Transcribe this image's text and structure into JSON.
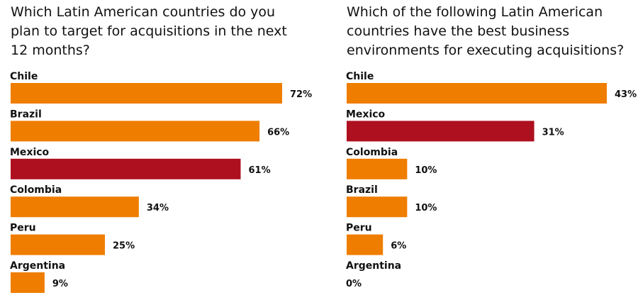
{
  "colors": {
    "default": "#ef7d00",
    "highlight": "#ae1020",
    "text": "#111111"
  },
  "chart_data": [
    {
      "type": "bar",
      "orientation": "horizontal",
      "title": "Which Latin American countries do you plan to target for acquisitions in the next 12 months?",
      "categories": [
        "Chile",
        "Brazil",
        "Mexico",
        "Colombia",
        "Peru",
        "Argentina"
      ],
      "values": [
        72,
        66,
        61,
        34,
        25,
        9
      ],
      "labels": [
        "72%",
        "66%",
        "61%",
        "34%",
        "25%",
        "9%"
      ],
      "highlight": "Mexico",
      "unit": "%",
      "xlim": [
        0,
        72
      ],
      "grid": false
    },
    {
      "type": "bar",
      "orientation": "horizontal",
      "title": "Which of the following Latin American countries have the best business environments for executing acquisitions?",
      "categories": [
        "Chile",
        "Mexico",
        "Colombia",
        "Brazil",
        "Peru",
        "Argentina"
      ],
      "values": [
        43,
        31,
        10,
        10,
        6,
        0
      ],
      "labels": [
        "43%",
        "31%",
        "10%",
        "10%",
        "6%",
        "0%"
      ],
      "highlight": "Mexico",
      "unit": "%",
      "xlim": [
        0,
        43
      ],
      "grid": false
    }
  ]
}
